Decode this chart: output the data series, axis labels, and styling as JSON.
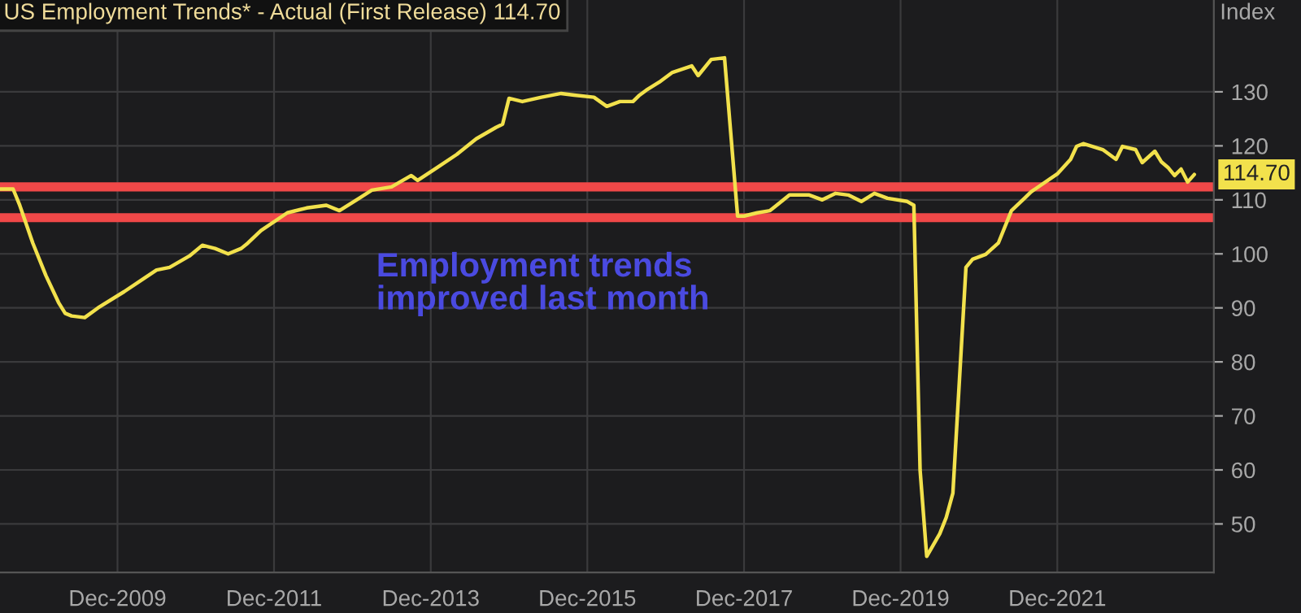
{
  "chart_data": {
    "type": "line",
    "title": "US Employment Trends* - Actual (First Release) 114.70",
    "ylabel": "Index",
    "annotations": [
      "Employment trends improved last month"
    ],
    "x": [
      "2008-06",
      "2008-08",
      "2008-09",
      "2008-11",
      "2009-01",
      "2009-03",
      "2009-04",
      "2009-05",
      "2009-07",
      "2009-09",
      "2010-01",
      "2010-04",
      "2010-06",
      "2010-08",
      "2010-11",
      "2011-01",
      "2011-03",
      "2011-05",
      "2011-07",
      "2011-08",
      "2011-10",
      "2012-02",
      "2012-05",
      "2012-08",
      "2012-10",
      "2013-01",
      "2013-03",
      "2013-06",
      "2013-09",
      "2013-10",
      "2014-01",
      "2014-04",
      "2014-07",
      "2014-10",
      "2014-11",
      "2014-12",
      "2015-02",
      "2015-05",
      "2015-08",
      "2015-10",
      "2016-01",
      "2016-03",
      "2016-05",
      "2016-07",
      "2016-08",
      "2016-09",
      "2016-11",
      "2017-01",
      "2017-04",
      "2017-05",
      "2017-07",
      "2017-09",
      "2017-11",
      "2017-12",
      "2018-02",
      "2018-04",
      "2018-07",
      "2018-10",
      "2018-12",
      "2019-02",
      "2019-04",
      "2019-06",
      "2019-08",
      "2019-10",
      "2020-01",
      "2020-02",
      "2020-03",
      "2020-04",
      "2020-06",
      "2020-07",
      "2020-08",
      "2020-10",
      "2020-11",
      "2021-01",
      "2021-03",
      "2021-05",
      "2021-07",
      "2021-08",
      "2021-12",
      "2022-02",
      "2022-03",
      "2022-04",
      "2022-07",
      "2022-09",
      "2022-10",
      "2022-12",
      "2023-01",
      "2023-03",
      "2023-04",
      "2023-05",
      "2023-06",
      "2023-07",
      "2023-08",
      "2023-09"
    ],
    "series": [
      {
        "color": "#f2e14c",
        "values": [
          112,
          112,
          109,
          102,
          96,
          91,
          89,
          88.5,
          88.2,
          90,
          93,
          95.4,
          97,
          97.5,
          99.6,
          101.6,
          101,
          100,
          101,
          102,
          104.3,
          107.6,
          108.5,
          109,
          108,
          110.3,
          111.8,
          112.4,
          114.5,
          113.6,
          116,
          118.4,
          121.3,
          123.4,
          124,
          128.8,
          128.2,
          129,
          129.7,
          129.4,
          129,
          127.3,
          128.2,
          128.2,
          129.4,
          130.3,
          131.8,
          133.6,
          134.8,
          133,
          136,
          136.3,
          107,
          107,
          107.6,
          108,
          110.9,
          110.9,
          110,
          111.2,
          110.9,
          109.7,
          111.2,
          110.3,
          109.7,
          109,
          60,
          44,
          48.2,
          51.2,
          55.7,
          97.5,
          99,
          99.9,
          102,
          108,
          110.3,
          111.5,
          114.8,
          117.5,
          119.9,
          120.4,
          119.3,
          117.5,
          119.9,
          119.3,
          116.9,
          119,
          117,
          116,
          114.5,
          115.7,
          113.3,
          114.7
        ],
        "value_labels": [
          null,
          null,
          null,
          null,
          null,
          null,
          null,
          null,
          null,
          null,
          null,
          null,
          null,
          null,
          null,
          null,
          null,
          null,
          null,
          null,
          null,
          null,
          null,
          null,
          null,
          null,
          null,
          null,
          null,
          null,
          null,
          null,
          null,
          null,
          null,
          null,
          null,
          null,
          null,
          null,
          null,
          null,
          null,
          null,
          null,
          null,
          null,
          null,
          null,
          null,
          null,
          null,
          null,
          null,
          null,
          null,
          null,
          null,
          null,
          null,
          null,
          null,
          null,
          null,
          null,
          null,
          null,
          null,
          null,
          null,
          null,
          null,
          null,
          null,
          null,
          null,
          null,
          null,
          null,
          null,
          null,
          null,
          null,
          null,
          null,
          null,
          null,
          null,
          null,
          null,
          null,
          null,
          null,
          "114.70"
        ]
      }
    ],
    "xlim": [
      "2008-06",
      "2023-12"
    ],
    "xticks": [
      {
        "value": "2009-12",
        "label": "Dec-2009"
      },
      {
        "value": "2011-12",
        "label": "Dec-2011"
      },
      {
        "value": "2013-12",
        "label": "Dec-2013"
      },
      {
        "value": "2015-12",
        "label": "Dec-2015"
      },
      {
        "value": "2017-12",
        "label": "Dec-2017"
      },
      {
        "value": "2019-12",
        "label": "Dec-2019"
      },
      {
        "value": "2021-12",
        "label": "Dec-2021"
      }
    ],
    "ylim": [
      41,
      147
    ],
    "yticks": [
      50,
      60,
      70,
      80,
      90,
      100,
      110,
      120,
      130
    ],
    "ref_lines": [
      {
        "axis": "y",
        "value": 112.4,
        "color": "#f04848"
      },
      {
        "axis": "y",
        "value": 106.7,
        "color": "#f04848"
      }
    ],
    "grid": true,
    "line_style": "solid",
    "marker": "none"
  }
}
